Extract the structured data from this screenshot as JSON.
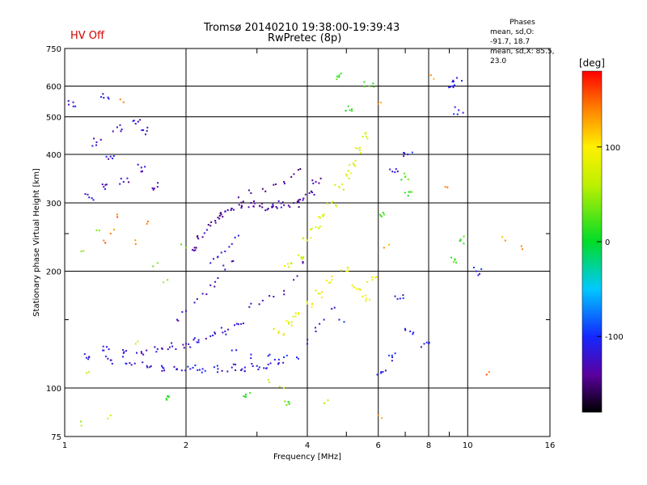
{
  "header": {
    "title": "Tromsø 20140210 19:38:00-19:39:43",
    "subtitle": "RwPretec (8p)",
    "status": "HV Off",
    "status_color": "#d40000"
  },
  "phase_panel": {
    "title": "Phases",
    "line1": "mean, sd,O: -91.7, 18.7",
    "line2": "mean, sd,X: 85.5, 23.0"
  },
  "colorbar": {
    "label": "[deg]",
    "ticks": [
      {
        "value": 100,
        "label": "100"
      },
      {
        "value": 0,
        "label": "0"
      },
      {
        "value": -100,
        "label": "-100"
      }
    ],
    "range": [
      -180,
      180
    ]
  },
  "chart_data": {
    "type": "scatter",
    "xlabel": "Frequency [MHz]",
    "ylabel": "Stationary phase Virtual Height [km]",
    "x_scale": "log",
    "y_scale": "log",
    "xlim": [
      1,
      16
    ],
    "ylim": [
      75,
      750
    ],
    "x_ticks": [
      1,
      2,
      4,
      6,
      8,
      10,
      16
    ],
    "x_tick_labels": [
      "1",
      "2",
      "4",
      "6",
      "8",
      "10",
      "16"
    ],
    "x_minor_ticks": [
      3,
      5,
      7,
      9
    ],
    "y_ticks": [
      75,
      100,
      200,
      300,
      400,
      500,
      600,
      750
    ],
    "y_tick_labels": [
      "75",
      "100",
      "200",
      "300",
      "400",
      "500",
      "600",
      "750"
    ],
    "y_minor_ticks": [
      150,
      250
    ],
    "grid": true,
    "clusters": [
      {
        "name": "",
        "points": [
          [
            1.15,
            120
          ],
          [
            1.3,
            118
          ],
          [
            1.45,
            116
          ],
          [
            1.6,
            114
          ],
          [
            1.75,
            113
          ],
          [
            1.9,
            112
          ],
          [
            2.05,
            112
          ],
          [
            2.2,
            112
          ],
          [
            2.4,
            112
          ],
          [
            2.6,
            113
          ],
          [
            2.8,
            113
          ],
          [
            3.0,
            114
          ],
          [
            3.2,
            115
          ],
          [
            3.4,
            116
          ]
        ],
        "phase": -115
      },
      {
        "name": "",
        "points": [
          [
            1.25,
            125
          ],
          [
            1.4,
            123
          ],
          [
            1.55,
            124
          ],
          [
            1.7,
            126
          ],
          [
            1.85,
            128
          ],
          [
            2.0,
            130
          ],
          [
            2.15,
            133
          ],
          [
            2.3,
            136
          ],
          [
            2.5,
            140
          ],
          [
            2.7,
            146
          ]
        ],
        "phase": -120
      },
      {
        "name": "",
        "points": [
          [
            1.9,
            150
          ],
          [
            2.0,
            158
          ],
          [
            2.1,
            166
          ],
          [
            2.2,
            175
          ],
          [
            2.3,
            184
          ],
          [
            2.4,
            192
          ],
          [
            2.5,
            202
          ],
          [
            2.6,
            212
          ]
        ],
        "phase": -125
      },
      {
        "name": "",
        "points": [
          [
            2.1,
            230
          ],
          [
            2.2,
            245
          ],
          [
            2.3,
            262
          ],
          [
            2.4,
            275
          ],
          [
            2.5,
            285
          ],
          [
            2.6,
            290
          ],
          [
            2.75,
            295
          ],
          [
            2.9,
            300
          ],
          [
            3.05,
            295
          ],
          [
            3.2,
            290
          ],
          [
            3.35,
            293
          ],
          [
            3.5,
            296
          ],
          [
            3.7,
            300
          ],
          [
            3.9,
            305
          ],
          [
            4.05,
            318
          ],
          [
            4.2,
            340
          ]
        ],
        "phase": -135
      },
      {
        "name": "",
        "points": [
          [
            2.7,
            310
          ],
          [
            2.9,
            318
          ],
          [
            3.1,
            326
          ],
          [
            3.3,
            334
          ],
          [
            3.5,
            340
          ],
          [
            3.65,
            350
          ],
          [
            3.8,
            365
          ]
        ],
        "phase": -145
      },
      {
        "name": "",
        "points": [
          [
            2.3,
            210
          ],
          [
            2.4,
            218
          ],
          [
            2.5,
            225
          ],
          [
            2.6,
            235
          ],
          [
            2.7,
            247
          ]
        ],
        "phase": -110
      },
      {
        "name": "",
        "points": [
          [
            2.9,
            165
          ],
          [
            3.1,
            168
          ],
          [
            3.3,
            172
          ],
          [
            3.5,
            178
          ],
          [
            3.7,
            190
          ],
          [
            3.9,
            210
          ]
        ],
        "phase": -130
      },
      {
        "name": "",
        "points": [
          [
            2.6,
            125
          ],
          [
            2.9,
            122
          ],
          [
            3.2,
            121
          ],
          [
            3.5,
            120
          ],
          [
            3.8,
            119
          ]
        ],
        "phase": -105
      },
      {
        "name": "",
        "points": [
          [
            3.6,
            205
          ],
          [
            3.8,
            220
          ],
          [
            4.0,
            240
          ],
          [
            4.2,
            260
          ],
          [
            4.4,
            280
          ],
          [
            4.6,
            300
          ],
          [
            4.8,
            330
          ],
          [
            5.0,
            355
          ],
          [
            5.2,
            380
          ],
          [
            5.4,
            410
          ],
          [
            5.6,
            445
          ]
        ],
        "phase": 75
      },
      {
        "name": "",
        "points": [
          [
            3.4,
            140
          ],
          [
            3.6,
            148
          ],
          [
            3.8,
            155
          ],
          [
            4.0,
            165
          ],
          [
            4.3,
            175
          ],
          [
            4.6,
            190
          ],
          [
            5.0,
            200
          ],
          [
            5.3,
            180
          ],
          [
            5.6,
            170
          ],
          [
            5.8,
            190
          ]
        ],
        "phase": 90
      },
      {
        "name": "",
        "points": [
          [
            4.0,
            130
          ],
          [
            4.2,
            140
          ],
          [
            4.4,
            150
          ],
          [
            4.6,
            160
          ],
          [
            4.8,
            150
          ]
        ],
        "phase": -115
      },
      {
        "name": "",
        "points": [
          [
            1.05,
            545
          ],
          [
            1.25,
            560
          ],
          [
            1.35,
            470
          ],
          [
            1.5,
            480
          ],
          [
            1.6,
            460
          ],
          [
            1.2,
            430
          ],
          [
            1.3,
            395
          ],
          [
            1.4,
            340
          ],
          [
            1.25,
            330
          ],
          [
            1.15,
            310
          ],
          [
            1.55,
            370
          ],
          [
            1.7,
            330
          ]
        ],
        "phase": -120
      },
      {
        "name": "",
        "points": [
          [
            1.4,
            545
          ],
          [
            1.35,
            280
          ],
          [
            1.6,
            265
          ],
          [
            1.3,
            250
          ],
          [
            1.25,
            240
          ],
          [
            1.5,
            235
          ]
        ],
        "phase": 140
      },
      {
        "name": "",
        "points": [
          [
            1.1,
            225
          ],
          [
            1.2,
            255
          ],
          [
            1.7,
            210
          ],
          [
            2.0,
            230
          ],
          [
            1.8,
            190
          ]
        ],
        "phase": 40
      },
      {
        "name": "",
        "points": [
          [
            6.1,
            110
          ],
          [
            6.5,
            120
          ],
          [
            6.8,
            170
          ],
          [
            7.2,
            140
          ],
          [
            7.8,
            130
          ],
          [
            7.1,
            400
          ],
          [
            6.6,
            360
          ],
          [
            9.5,
            520
          ],
          [
            9.2,
            600
          ],
          [
            9.4,
            630
          ],
          [
            10.5,
            200
          ]
        ],
        "phase": -110
      },
      {
        "name": "",
        "points": [
          [
            6.0,
            540
          ],
          [
            6.2,
            230
          ],
          [
            6.0,
            85
          ],
          [
            8.1,
            640
          ],
          [
            12.4,
            240
          ],
          [
            13.6,
            232
          ],
          [
            11.3,
            110
          ],
          [
            8.8,
            330
          ]
        ],
        "phase": 140
      },
      {
        "name": "",
        "points": [
          [
            4.8,
            640
          ],
          [
            5.1,
            520
          ],
          [
            5.7,
            600
          ],
          [
            7.2,
            320
          ],
          [
            6.2,
            280
          ],
          [
            9.6,
            240
          ],
          [
            9.3,
            215
          ],
          [
            7.0,
            350
          ],
          [
            1.8,
            95
          ],
          [
            2.8,
            95
          ],
          [
            3.6,
            92
          ]
        ],
        "phase": 20
      },
      {
        "name": "",
        "points": [
          [
            1.1,
            80
          ],
          [
            1.5,
            130
          ],
          [
            1.15,
            110
          ],
          [
            3.2,
            105
          ],
          [
            3.5,
            100
          ],
          [
            4.5,
            93
          ],
          [
            1.3,
            85
          ]
        ],
        "phase": 60
      }
    ]
  }
}
